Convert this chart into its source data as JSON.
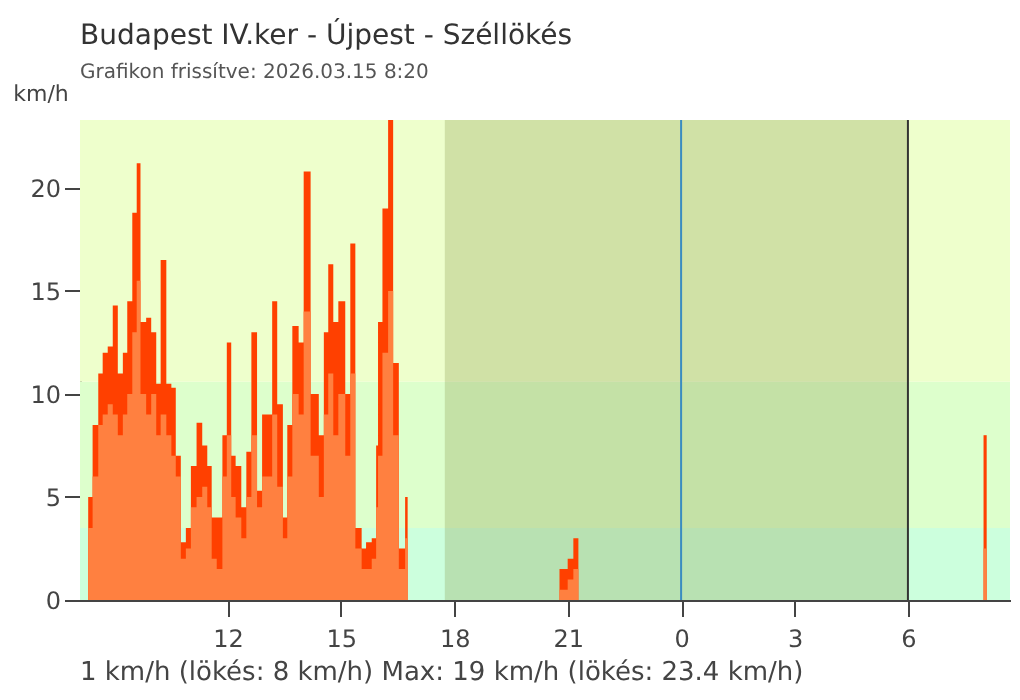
{
  "chart_data": {
    "type": "area",
    "title": "Budapest IV.ker - Újpest - Széllökés",
    "subtitle": "Grafikon frissítve: 2026.03.15 8:20",
    "ylabel": "km/h",
    "annotations": [
      "1 km/h  (lökés: 8 km/h)  Max: 19 km/h (lökés: 23.4 km/h)"
    ],
    "xlim": [
      "2026-03-14T08:06",
      "2026-03-15T08:42"
    ],
    "ylim": [
      0,
      23.3
    ],
    "xticks": [
      {
        "value": "2026-03-14T12:00",
        "label": "12"
      },
      {
        "value": "2026-03-14T15:00",
        "label": "15"
      },
      {
        "value": "2026-03-14T18:00",
        "label": "18"
      },
      {
        "value": "2026-03-14T21:00",
        "label": "21"
      },
      {
        "value": "2026-03-15T00:00",
        "label": "0"
      },
      {
        "value": "2026-03-15T03:00",
        "label": "3"
      },
      {
        "value": "2026-03-15T06:00",
        "label": "6"
      }
    ],
    "yticks": [
      0,
      5,
      10,
      15,
      20
    ],
    "grid": false,
    "bands": [
      {
        "axis": "y",
        "from": 0,
        "to": 3.5,
        "color": "#ccffdd"
      },
      {
        "axis": "y",
        "from": 3.5,
        "to": 10.6,
        "color": "#ddffcc"
      },
      {
        "axis": "y",
        "from": 10.6,
        "to": 23.3,
        "color": "#eeffcc"
      },
      {
        "axis": "x",
        "from": "2026-03-14T17:45",
        "to": "2026-03-15T06:00",
        "color": "#8a9a50"
      }
    ],
    "ref_lines": [
      {
        "axis": "x",
        "value": "2026-03-15T00:00",
        "color": "#3a8cc0"
      },
      {
        "axis": "x",
        "value": "2026-03-15T06:00",
        "color": "#333333"
      }
    ],
    "x": [
      "2026-03-14T08:19",
      "2026-03-14T08:26",
      "2026-03-14T08:35",
      "2026-03-14T08:42",
      "2026-03-14T08:50",
      "2026-03-14T08:58",
      "2026-03-14T09:06",
      "2026-03-14T09:14",
      "2026-03-14T09:21",
      "2026-03-14T09:29",
      "2026-03-14T09:36",
      "2026-03-14T09:42",
      "2026-03-14T09:51",
      "2026-03-14T09:59",
      "2026-03-14T10:07",
      "2026-03-14T10:14",
      "2026-03-14T10:23",
      "2026-03-14T10:31",
      "2026-03-14T10:38",
      "2026-03-14T10:46",
      "2026-03-14T10:54",
      "2026-03-14T11:02",
      "2026-03-14T11:11",
      "2026-03-14T11:20",
      "2026-03-14T11:28",
      "2026-03-14T11:35",
      "2026-03-14T11:43",
      "2026-03-14T11:52",
      "2026-03-14T11:59",
      "2026-03-14T12:06",
      "2026-03-14T12:13",
      "2026-03-14T12:22",
      "2026-03-14T12:30",
      "2026-03-14T12:38",
      "2026-03-14T12:47",
      "2026-03-14T12:55",
      "2026-03-14T13:04",
      "2026-03-14T13:11",
      "2026-03-14T13:19",
      "2026-03-14T13:28",
      "2026-03-14T13:35",
      "2026-03-14T13:43",
      "2026-03-14T13:53",
      "2026-03-14T14:01",
      "2026-03-14T14:12",
      "2026-03-14T14:25",
      "2026-03-14T14:33",
      "2026-03-14T14:40",
      "2026-03-14T14:48",
      "2026-03-14T14:56",
      "2026-03-14T15:07",
      "2026-03-14T15:15",
      "2026-03-14T15:23",
      "2026-03-14T15:33",
      "2026-03-14T15:40",
      "2026-03-14T15:49",
      "2026-03-14T15:56",
      "2026-03-14T15:59",
      "2026-03-14T16:06",
      "2026-03-14T16:15",
      "2026-03-14T16:23",
      "2026-03-14T16:32",
      "2026-03-14T16:42",
      "2026-03-14T16:46",
      null,
      "2026-03-14T20:47",
      "2026-03-14T21:00",
      "2026-03-14T21:09",
      "2026-03-14T21:17",
      null,
      "2026-03-15T08:00",
      "2026-03-15T08:05"
    ],
    "series": [
      {
        "color": "#ff4000",
        "values": [
          5,
          8.5,
          11,
          12,
          12.3,
          14.3,
          11,
          12,
          14.5,
          18.8,
          21.2,
          13.5,
          13.7,
          13,
          10.5,
          16.5,
          10.5,
          10.3,
          7,
          2.8,
          3.5,
          6.5,
          8.6,
          7.5,
          6.5,
          4,
          4,
          8,
          12.5,
          7,
          6.5,
          4.5,
          7.2,
          13,
          5.3,
          9,
          9,
          14.5,
          9.5,
          4,
          8.5,
          13.3,
          12.5,
          20.8,
          10,
          8,
          13,
          16.3,
          13.5,
          14.5,
          10,
          17.3,
          3.5,
          2.5,
          2.8,
          3,
          7.5,
          13.5,
          19,
          23.3,
          11.5,
          2.5,
          5,
          5.5,
          null,
          1.5,
          2,
          3,
          4.5,
          null,
          8,
          8
        ]
      },
      {
        "color": "#ff8040",
        "values": [
          3.5,
          6,
          8.5,
          9,
          9.5,
          9,
          8,
          9,
          10,
          13,
          15.5,
          10,
          9,
          10,
          8,
          9,
          8,
          7,
          6,
          2,
          2.5,
          4.5,
          5,
          5.5,
          4.5,
          2,
          1.5,
          6,
          8,
          5,
          4,
          3,
          5,
          8,
          4.5,
          6,
          6,
          9,
          5.5,
          3,
          6,
          10,
          9,
          14,
          7,
          5,
          9,
          11,
          8,
          10,
          7,
          11,
          2.5,
          1.5,
          1.5,
          2,
          4.5,
          7,
          12,
          15,
          8,
          1.5,
          3,
          3.5,
          null,
          0.5,
          1,
          1.5,
          1.5,
          null,
          2.5,
          2.5
        ]
      }
    ]
  }
}
